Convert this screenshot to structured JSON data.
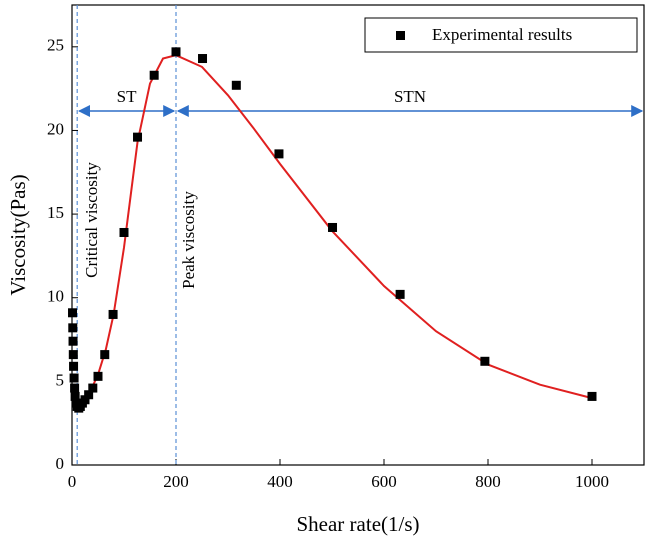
{
  "chart_data": {
    "type": "scatter",
    "x_label": "Shear rate(1/s)",
    "y_label": "Viscosity(Pas)",
    "xlim": [
      0,
      1100
    ],
    "ylim": [
      0,
      27.5
    ],
    "xticks": [
      0,
      200,
      400,
      600,
      800,
      1000
    ],
    "yticks": [
      0,
      5,
      10,
      15,
      20,
      25
    ],
    "series": [
      {
        "name": "Experimental results",
        "color": "#000000",
        "x": [
          1,
          1.5,
          2,
          2.5,
          3,
          4,
          5,
          6,
          8,
          10,
          13,
          16,
          20,
          25,
          32,
          40,
          50,
          63,
          79,
          100,
          126,
          158,
          200,
          251,
          316,
          398,
          501,
          631,
          794,
          1000
        ],
        "values": [
          9.1,
          8.2,
          7.4,
          6.6,
          5.9,
          5.2,
          4.6,
          4.1,
          3.7,
          3.5,
          3.4,
          3.5,
          3.7,
          3.9,
          4.2,
          4.6,
          5.3,
          6.6,
          9.0,
          13.9,
          19.6,
          23.3,
          24.7,
          24.3,
          22.7,
          18.6,
          14.2,
          10.2,
          6.2,
          4.1
        ]
      }
    ],
    "fit_curve": {
      "color": "#e02020",
      "x": [
        5,
        20,
        35,
        50,
        65,
        80,
        100,
        126,
        150,
        175,
        200,
        250,
        300,
        350,
        400,
        500,
        600,
        700,
        800,
        900,
        1000
      ],
      "values": [
        3.6,
        3.8,
        4.4,
        5.4,
        6.9,
        9.0,
        13.0,
        19.3,
        22.8,
        24.3,
        24.5,
        23.8,
        22.1,
        20.1,
        18.0,
        14.0,
        10.7,
        8.0,
        6.0,
        4.8,
        4.0
      ]
    },
    "vlines": [
      10,
      200
    ],
    "vline_color": "#5b8fd6",
    "arrow_color": "#2e6fc7",
    "annotations": [
      "ST",
      "STN",
      "Critical viscosity",
      "Peak viscosity"
    ],
    "legend": "upper right"
  }
}
